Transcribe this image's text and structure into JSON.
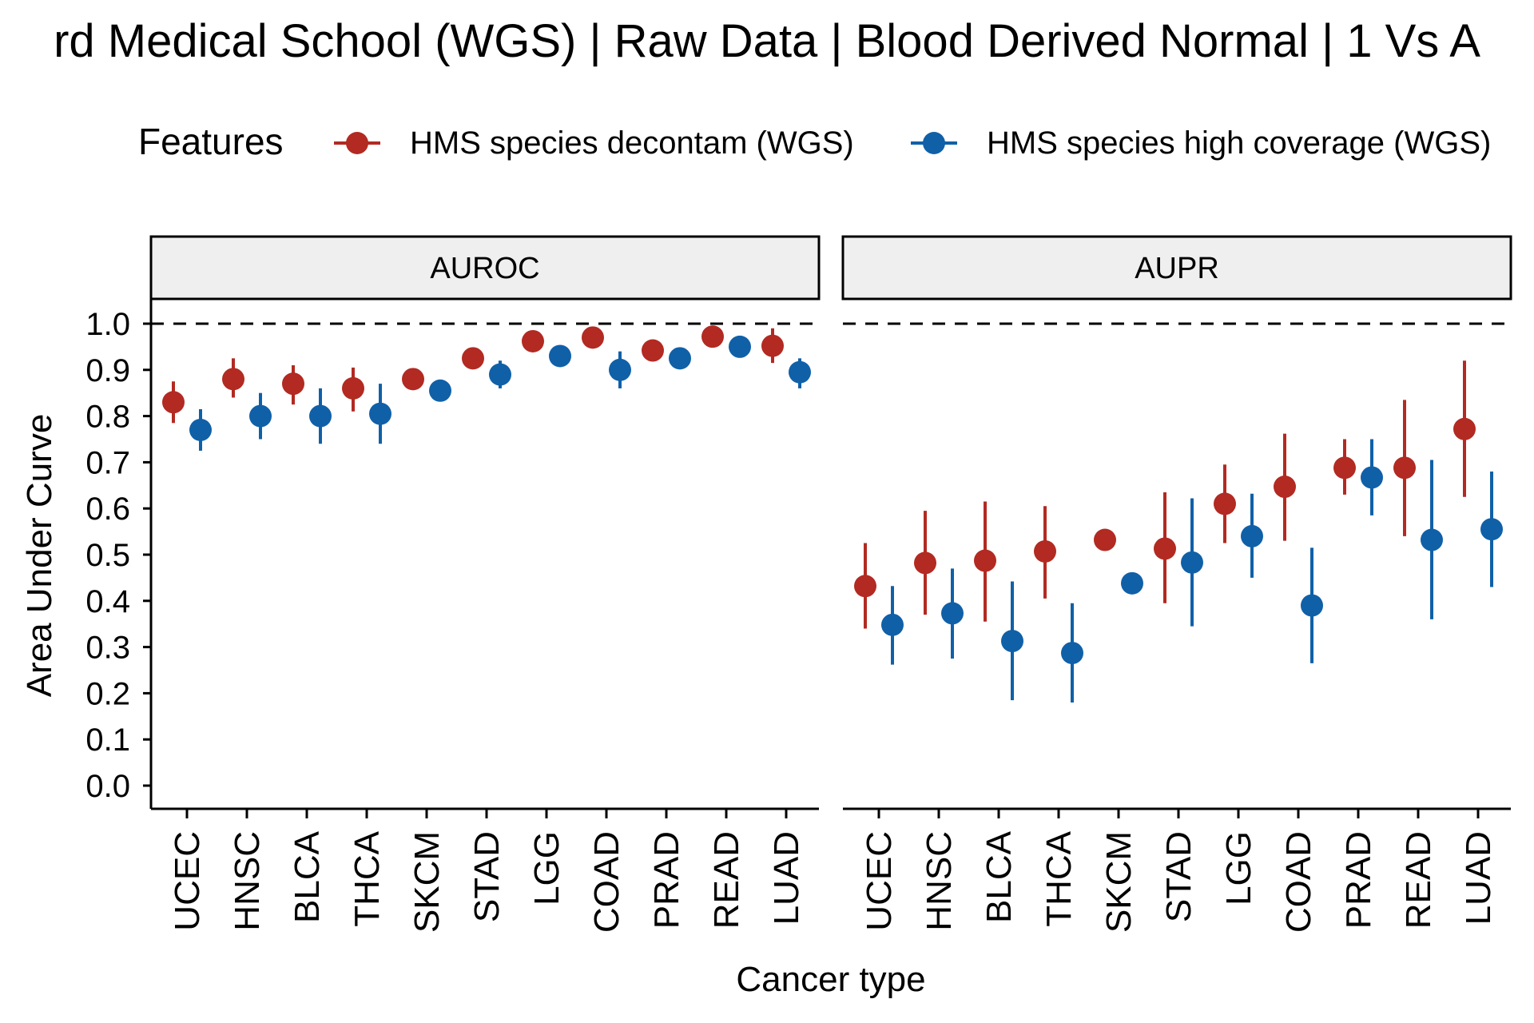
{
  "title": "rd Medical School (WGS) | Raw Data | Blood Derived Normal | 1 Vs A",
  "legend": {
    "title": "Features",
    "items": [
      {
        "label": "HMS species decontam (WGS)",
        "color": "#b22a22"
      },
      {
        "label": "HMS species high coverage (WGS)",
        "color": "#1060a8"
      }
    ]
  },
  "chart_data": {
    "type": "scatter",
    "xlabel": "Cancer type",
    "ylabel": "Area Under Curve",
    "ylim": [
      0,
      1
    ],
    "yticks": [
      "0.0",
      "0.1",
      "0.2",
      "0.3",
      "0.4",
      "0.5",
      "0.6",
      "0.7",
      "0.8",
      "0.9",
      "1.0"
    ],
    "reference_line": 1.0,
    "categories": [
      "UCEC",
      "HNSC",
      "BLCA",
      "THCA",
      "SKCM",
      "STAD",
      "LGG",
      "COAD",
      "PRAD",
      "READ",
      "LUAD"
    ],
    "facets": [
      {
        "label": "AUROC",
        "series": [
          {
            "name": "HMS species decontam (WGS)",
            "values": [
              0.83,
              0.88,
              0.87,
              0.86,
              0.88,
              0.925,
              0.962,
              0.97,
              0.942,
              0.972,
              0.952
            ],
            "lower": [
              0.785,
              0.84,
              0.825,
              0.81,
              0.88,
              0.925,
              0.962,
              0.97,
              0.942,
              0.972,
              0.915
            ],
            "upper": [
              0.875,
              0.925,
              0.91,
              0.905,
              0.88,
              0.925,
              0.962,
              0.97,
              0.942,
              0.972,
              0.99
            ]
          },
          {
            "name": "HMS species high coverage (WGS)",
            "values": [
              0.77,
              0.8,
              0.8,
              0.805,
              0.855,
              0.89,
              0.93,
              0.9,
              0.925,
              0.95,
              0.895
            ],
            "lower": [
              0.725,
              0.75,
              0.74,
              0.74,
              0.855,
              0.86,
              0.93,
              0.86,
              0.925,
              0.95,
              0.86
            ],
            "upper": [
              0.815,
              0.85,
              0.86,
              0.87,
              0.855,
              0.92,
              0.93,
              0.94,
              0.925,
              0.95,
              0.925
            ]
          }
        ]
      },
      {
        "label": "AUPR",
        "series": [
          {
            "name": "HMS species decontam (WGS)",
            "values": [
              0.432,
              0.482,
              0.487,
              0.507,
              0.532,
              0.513,
              0.61,
              0.647,
              0.688,
              0.688,
              0.772
            ],
            "lower": [
              0.34,
              0.37,
              0.355,
              0.405,
              0.532,
              0.395,
              0.525,
              0.53,
              0.63,
              0.54,
              0.625
            ],
            "upper": [
              0.525,
              0.595,
              0.615,
              0.605,
              0.532,
              0.635,
              0.695,
              0.762,
              0.75,
              0.835,
              0.92
            ]
          },
          {
            "name": "HMS species high coverage (WGS)",
            "values": [
              0.348,
              0.373,
              0.313,
              0.287,
              0.438,
              0.483,
              0.54,
              0.39,
              0.667,
              0.532,
              0.555
            ],
            "lower": [
              0.262,
              0.275,
              0.185,
              0.18,
              0.438,
              0.345,
              0.45,
              0.265,
              0.585,
              0.36,
              0.43
            ],
            "upper": [
              0.432,
              0.47,
              0.442,
              0.395,
              0.438,
              0.622,
              0.632,
              0.515,
              0.75,
              0.705,
              0.68
            ]
          }
        ]
      }
    ]
  }
}
